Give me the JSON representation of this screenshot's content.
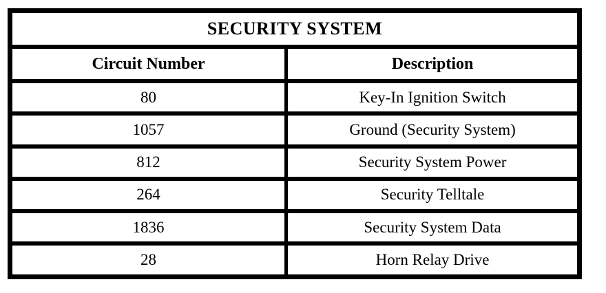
{
  "table": {
    "title": "SECURITY SYSTEM",
    "columns": [
      "Circuit Number",
      "Description"
    ],
    "rows": [
      {
        "circuit": "80",
        "description": "Key-In Ignition Switch"
      },
      {
        "circuit": "1057",
        "description": "Ground (Security System)"
      },
      {
        "circuit": "812",
        "description": "Security System Power"
      },
      {
        "circuit": "264",
        "description": "Security Telltale"
      },
      {
        "circuit": "1836",
        "description": "Security System Data"
      },
      {
        "circuit": "28",
        "description": "Horn Relay Drive"
      }
    ],
    "colors": {
      "border": "#000000",
      "background": "#ffffff",
      "text": "#000000"
    }
  }
}
